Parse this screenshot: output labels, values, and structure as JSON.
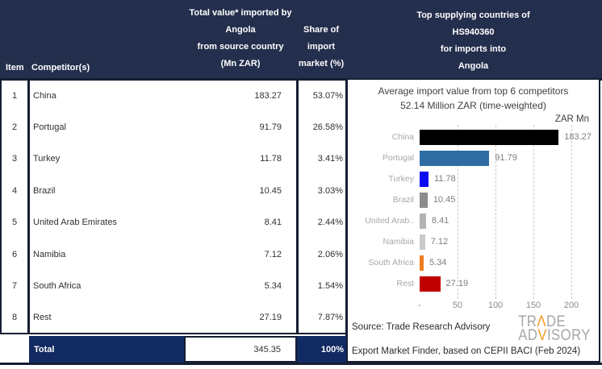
{
  "header": {
    "item": "Item",
    "competitors": "Competitor(s)",
    "value_col_lines": [
      "Total value* imported by",
      "Angola",
      "from source country",
      "(Mn ZAR)"
    ],
    "share_col_lines": [
      "Share of",
      "import",
      "market (%)"
    ],
    "right_lines": [
      "Top supplying countries of",
      "HS940360",
      "for imports into",
      "Angola"
    ]
  },
  "table": {
    "rows": [
      {
        "item": "1",
        "competitor": "China",
        "value": "183.27",
        "share": "53.07%"
      },
      {
        "item": "2",
        "competitor": "Portugal",
        "value": "91.79",
        "share": "26.58%"
      },
      {
        "item": "3",
        "competitor": "Turkey",
        "value": "11.78",
        "share": "3.41%"
      },
      {
        "item": "4",
        "competitor": "Brazil",
        "value": "10.45",
        "share": "3.03%"
      },
      {
        "item": "5",
        "competitor": "United Arab Emirates",
        "value": "8.41",
        "share": "2.44%"
      },
      {
        "item": "6",
        "competitor": "Namibia",
        "value": "7.12",
        "share": "2.06%"
      },
      {
        "item": "7",
        "competitor": "South Africa",
        "value": "5.34",
        "share": "1.54%"
      },
      {
        "item": "8",
        "competitor": "Rest",
        "value": "27.19",
        "share": "7.87%"
      }
    ],
    "total_label": "Total",
    "total_value": "345.35",
    "total_share": "100%"
  },
  "chart_data": {
    "type": "bar",
    "orientation": "horizontal",
    "title": "Average import value from top 6 competitors",
    "subtitle": "52.14 Million ZAR (time-weighted)",
    "axis_unit_label": "ZAR Mn",
    "categories": [
      "China",
      "Portugal",
      "Turkey",
      "Brazil",
      "United Arab..",
      "Namibia",
      "South Africa",
      "Rest"
    ],
    "values": [
      183.27,
      91.79,
      11.78,
      10.45,
      8.41,
      7.12,
      5.34,
      27.19
    ],
    "value_labels": [
      "183.27",
      "91.79",
      "11.78",
      "10.45",
      "8.41",
      "7.12",
      "5.34",
      "27.19"
    ],
    "bar_colors": [
      "#000000",
      "#2e6da4",
      "#0a0af5",
      "#8c8c8c",
      "#b3b3b3",
      "#c9c9c9",
      "#ee7d1e",
      "#c00000"
    ],
    "xlim": [
      0,
      225
    ],
    "xticks": [
      {
        "label": "-",
        "value": 0
      },
      {
        "label": "50",
        "value": 50
      },
      {
        "label": "100",
        "value": 100
      },
      {
        "label": "150",
        "value": 150
      },
      {
        "label": "200",
        "value": 200
      }
    ],
    "grid": "vertical-dashed",
    "legend_position": "none"
  },
  "source": {
    "line1": "Source: Trade Research Advisory",
    "line2": "Export Market Finder, based on CEPII BACI (Feb 2024)"
  },
  "logo": {
    "line1_pre": "TR",
    "line1_accent": "Λ",
    "line1_post": "DE",
    "line2_pre": "AD",
    "line2_accent": "V",
    "line2_post": "ISORY",
    "accent_color": "#f5991e"
  },
  "colors": {
    "header_navy": "#242f4d",
    "total_navy": "#112a61",
    "border": "#161e33"
  }
}
